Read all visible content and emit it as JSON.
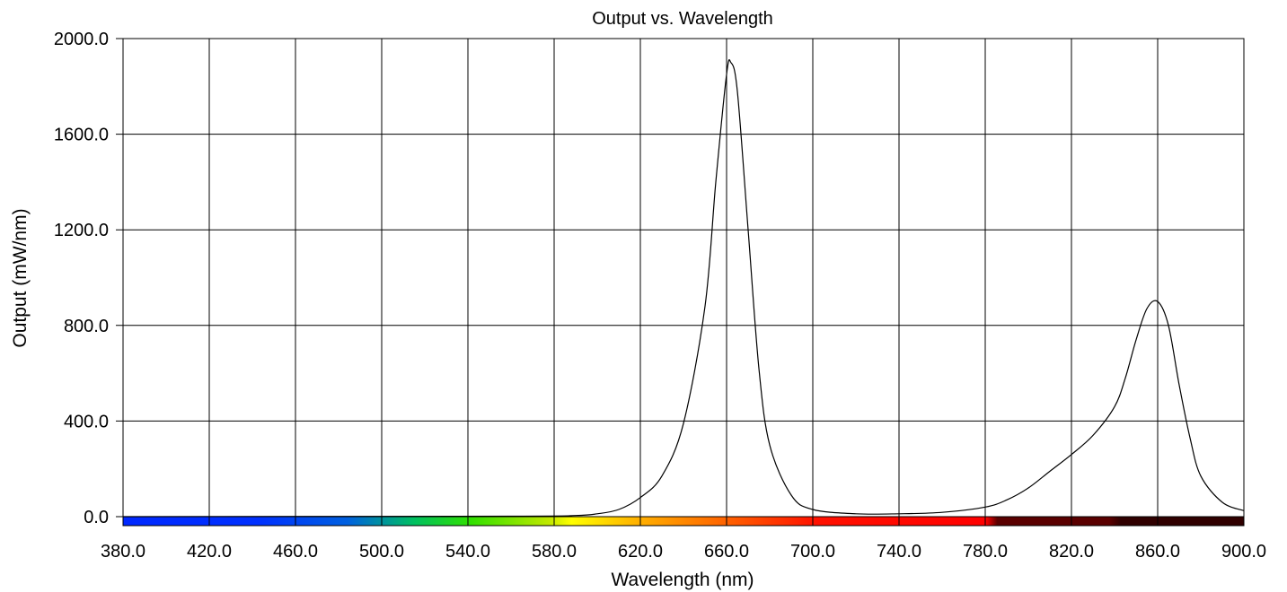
{
  "chart_data": {
    "type": "line",
    "title": "Output vs. Wavelength",
    "xlabel": "Wavelength (nm)",
    "ylabel": "Output (mW/nm)",
    "xlim": [
      380,
      900
    ],
    "ylim": [
      0,
      2000
    ],
    "x_ticks": [
      "380.0",
      "420.0",
      "460.0",
      "500.0",
      "540.0",
      "580.0",
      "620.0",
      "660.0",
      "700.0",
      "740.0",
      "780.0",
      "820.0",
      "860.0",
      "900.0"
    ],
    "y_ticks": [
      "0.0",
      "400.0",
      "800.0",
      "1200.0",
      "1600.0",
      "2000.0"
    ],
    "grid": true,
    "legend": "none",
    "spectrum_bar": true,
    "series": [
      {
        "color": "#000000",
        "x": [
          380,
          560,
          590,
          600,
          610,
          620,
          630,
          640,
          650,
          655,
          660,
          662,
          665,
          670,
          675,
          680,
          690,
          700,
          720,
          740,
          760,
          780,
          790,
          800,
          810,
          820,
          830,
          840,
          845,
          850,
          855,
          860,
          865,
          870,
          875,
          880,
          890,
          900
        ],
        "y": [
          0,
          2,
          5,
          12,
          30,
          80,
          170,
          390,
          880,
          1400,
          1850,
          1900,
          1780,
          1200,
          620,
          300,
          90,
          30,
          12,
          12,
          18,
          40,
          70,
          120,
          190,
          260,
          340,
          460,
          580,
          740,
          870,
          900,
          800,
          550,
          330,
          170,
          60,
          25
        ]
      }
    ]
  }
}
